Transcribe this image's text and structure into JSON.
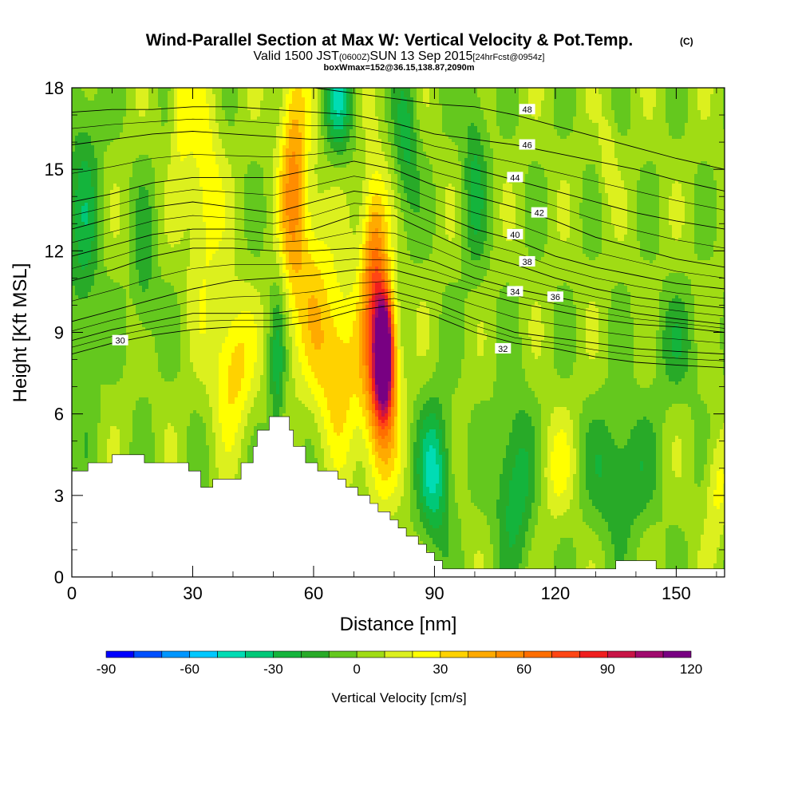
{
  "chart_data": {
    "type": "heatmap",
    "title": {
      "main": "Wind-Parallel Section at Max W: Vertical Velocity & Pot.Temp.",
      "copyright": "(C)",
      "valid_a": "Valid 1500 JST",
      "valid_zulu": "(0600Z)",
      "valid_b": "SUN 13 Sep 2015",
      "forecast": "[24hrFcst@0954z]",
      "box": "boxWmax=152@36.15,138.87,2090m"
    },
    "xlabel": "Distance [nm]",
    "ylabel": "Height [Kft MSL]",
    "xlim": [
      0,
      162
    ],
    "ylim": [
      0,
      18
    ],
    "x_ticks": [
      "0",
      "30",
      "60",
      "90",
      "120",
      "150"
    ],
    "y_ticks": [
      "0",
      "3",
      "6",
      "9",
      "12",
      "15",
      "18"
    ],
    "colorbar": {
      "label": "Vertical Velocity [cm/s]",
      "tick_labels": [
        "-90",
        "-60",
        "-30",
        "0",
        "30",
        "60",
        "90",
        "120"
      ],
      "ticks": [
        -90,
        -60,
        -30,
        0,
        30,
        60,
        90,
        120
      ],
      "min": -90,
      "max": 120,
      "levels": [
        -90,
        -80,
        -70,
        -60,
        -50,
        -40,
        -30,
        -20,
        -10,
        0,
        10,
        20,
        30,
        40,
        50,
        60,
        70,
        80,
        90,
        100,
        110,
        120
      ],
      "colors": [
        "#0000ff",
        "#0050ff",
        "#0096ff",
        "#00c8ff",
        "#00dcb4",
        "#00c878",
        "#14b43c",
        "#28aa28",
        "#64c81e",
        "#a0dc14",
        "#dcf01e",
        "#ffff00",
        "#ffd200",
        "#ffaa00",
        "#ff8c00",
        "#ff6e00",
        "#ff4614",
        "#f01e1e",
        "#c81446",
        "#a00a6e",
        "#780082"
      ]
    },
    "terrain": [
      [
        0,
        3.9
      ],
      [
        4,
        3.9
      ],
      [
        4,
        4.2
      ],
      [
        10,
        4.2
      ],
      [
        10,
        4.5
      ],
      [
        18,
        4.5
      ],
      [
        18,
        4.2
      ],
      [
        29,
        4.2
      ],
      [
        29,
        3.9
      ],
      [
        32,
        3.9
      ],
      [
        32,
        3.3
      ],
      [
        35,
        3.3
      ],
      [
        35,
        3.6
      ],
      [
        42,
        3.6
      ],
      [
        42,
        4.2
      ],
      [
        45,
        4.2
      ],
      [
        45,
        4.8
      ],
      [
        46,
        4.8
      ],
      [
        46,
        5.4
      ],
      [
        49,
        5.4
      ],
      [
        49,
        5.9
      ],
      [
        54,
        5.9
      ],
      [
        54,
        5.4
      ],
      [
        55,
        5.4
      ],
      [
        55,
        4.8
      ],
      [
        58,
        4.8
      ],
      [
        58,
        4.2
      ],
      [
        61,
        4.2
      ],
      [
        61,
        3.9
      ],
      [
        66,
        3.9
      ],
      [
        66,
        3.6
      ],
      [
        68,
        3.6
      ],
      [
        68,
        3.3
      ],
      [
        71,
        3.3
      ],
      [
        71,
        3.0
      ],
      [
        74,
        3.0
      ],
      [
        74,
        2.7
      ],
      [
        76,
        2.7
      ],
      [
        76,
        2.4
      ],
      [
        79,
        2.4
      ],
      [
        79,
        2.1
      ],
      [
        81,
        2.1
      ],
      [
        81,
        1.8
      ],
      [
        83,
        1.8
      ],
      [
        83,
        1.5
      ],
      [
        86,
        1.5
      ],
      [
        86,
        1.2
      ],
      [
        88,
        1.2
      ],
      [
        88,
        0.9
      ],
      [
        90,
        0.9
      ],
      [
        90,
        0.6
      ],
      [
        92,
        0.6
      ],
      [
        92,
        0.3
      ],
      [
        135,
        0.3
      ],
      [
        135,
        0.6
      ],
      [
        145,
        0.6
      ],
      [
        145,
        0.3
      ],
      [
        162,
        0.3
      ]
    ],
    "theta_contours": [
      {
        "label": "30",
        "points": [
          [
            0,
            8.2
          ],
          [
            10,
            8.6
          ],
          [
            20,
            8.9
          ],
          [
            30,
            9.1
          ],
          [
            40,
            9.2
          ],
          [
            50,
            9.2
          ],
          [
            60,
            9.4
          ],
          [
            70,
            9.8
          ],
          [
            80,
            10.0
          ],
          [
            90,
            9.6
          ],
          [
            100,
            9.0
          ],
          [
            110,
            8.6
          ],
          [
            120,
            8.4
          ],
          [
            130,
            8.1
          ],
          [
            140,
            7.9
          ],
          [
            150,
            7.8
          ],
          [
            162,
            7.7
          ]
        ],
        "label_at": [
          12,
          8.7
        ]
      },
      {
        "label": "32",
        "points": [
          [
            0,
            8.7
          ],
          [
            10,
            9.1
          ],
          [
            20,
            9.4
          ],
          [
            30,
            9.7
          ],
          [
            40,
            9.7
          ],
          [
            50,
            9.7
          ],
          [
            60,
            9.9
          ],
          [
            70,
            10.3
          ],
          [
            80,
            10.5
          ],
          [
            90,
            10.1
          ],
          [
            100,
            9.5
          ],
          [
            110,
            9.0
          ],
          [
            120,
            8.8
          ],
          [
            130,
            8.6
          ],
          [
            140,
            8.4
          ],
          [
            150,
            8.3
          ],
          [
            162,
            8.2
          ]
        ],
        "label_at": [
          107,
          8.4
        ]
      },
      {
        "label": "34",
        "points": [
          [
            0,
            9.4
          ],
          [
            10,
            9.8
          ],
          [
            20,
            10.2
          ],
          [
            30,
            10.6
          ],
          [
            40,
            10.9
          ],
          [
            50,
            11.0
          ],
          [
            60,
            11.1
          ],
          [
            70,
            11.3
          ],
          [
            80,
            11.3
          ],
          [
            90,
            10.9
          ],
          [
            100,
            10.5
          ],
          [
            110,
            10.1
          ],
          [
            120,
            9.8
          ],
          [
            130,
            9.5
          ],
          [
            140,
            9.3
          ],
          [
            150,
            9.2
          ],
          [
            162,
            9.0
          ]
        ],
        "label_at": [
          110,
          10.5
        ]
      },
      {
        "label": "36",
        "points": [
          [
            0,
            10.9
          ],
          [
            10,
            11.3
          ],
          [
            20,
            11.8
          ],
          [
            30,
            12.1
          ],
          [
            40,
            12.1
          ],
          [
            50,
            12.0
          ],
          [
            60,
            12.0
          ],
          [
            70,
            12.1
          ],
          [
            80,
            12.0
          ],
          [
            90,
            11.6
          ],
          [
            100,
            11.0
          ],
          [
            110,
            10.6
          ],
          [
            120,
            10.3
          ],
          [
            130,
            10.0
          ],
          [
            140,
            9.7
          ],
          [
            150,
            9.5
          ],
          [
            162,
            9.3
          ]
        ],
        "label_at": [
          120,
          10.3
        ]
      },
      {
        "label": "38",
        "points": [
          [
            0,
            11.8
          ],
          [
            10,
            12.2
          ],
          [
            20,
            12.6
          ],
          [
            30,
            12.8
          ],
          [
            40,
            12.8
          ],
          [
            50,
            12.6
          ],
          [
            60,
            12.8
          ],
          [
            70,
            13.3
          ],
          [
            80,
            13.3
          ],
          [
            90,
            12.6
          ],
          [
            100,
            11.9
          ],
          [
            110,
            11.5
          ],
          [
            120,
            11.0
          ],
          [
            130,
            10.6
          ],
          [
            140,
            10.3
          ],
          [
            150,
            10.1
          ],
          [
            162,
            9.9
          ]
        ],
        "label_at": [
          113,
          11.6
        ]
      },
      {
        "label": "40",
        "points": [
          [
            0,
            12.8
          ],
          [
            10,
            13.2
          ],
          [
            20,
            13.6
          ],
          [
            30,
            13.8
          ],
          [
            40,
            13.6
          ],
          [
            50,
            13.4
          ],
          [
            60,
            13.8
          ],
          [
            70,
            14.2
          ],
          [
            80,
            14.0
          ],
          [
            90,
            13.4
          ],
          [
            100,
            12.8
          ],
          [
            110,
            12.4
          ],
          [
            120,
            11.8
          ],
          [
            130,
            11.4
          ],
          [
            140,
            11.1
          ],
          [
            150,
            10.8
          ],
          [
            162,
            10.6
          ]
        ],
        "label_at": [
          110,
          12.6
        ]
      },
      {
        "label": "42",
        "points": [
          [
            0,
            13.8
          ],
          [
            10,
            14.1
          ],
          [
            20,
            14.5
          ],
          [
            30,
            14.7
          ],
          [
            40,
            14.7
          ],
          [
            50,
            14.7
          ],
          [
            60,
            15.0
          ],
          [
            70,
            15.3
          ],
          [
            80,
            15.0
          ],
          [
            90,
            14.4
          ],
          [
            100,
            14.0
          ],
          [
            110,
            13.6
          ],
          [
            120,
            13.1
          ],
          [
            130,
            12.5
          ],
          [
            140,
            12.1
          ],
          [
            150,
            11.7
          ],
          [
            162,
            11.4
          ]
        ],
        "label_at": [
          116,
          13.4
        ]
      },
      {
        "label": "44",
        "points": [
          [
            0,
            15.9
          ],
          [
            10,
            16.1
          ],
          [
            20,
            16.3
          ],
          [
            30,
            16.4
          ],
          [
            40,
            16.3
          ],
          [
            50,
            16.2
          ],
          [
            60,
            16.1
          ],
          [
            70,
            16.2
          ],
          [
            80,
            15.9
          ],
          [
            90,
            15.4
          ],
          [
            100,
            15.0
          ],
          [
            110,
            14.6
          ],
          [
            120,
            14.2
          ],
          [
            130,
            13.8
          ],
          [
            140,
            13.4
          ],
          [
            150,
            13.1
          ],
          [
            162,
            12.8
          ]
        ],
        "label_at": [
          110,
          14.7
        ]
      },
      {
        "label": "46",
        "points": [
          [
            0,
            17.1
          ],
          [
            10,
            17.2
          ],
          [
            20,
            17.2
          ],
          [
            30,
            17.3
          ],
          [
            40,
            17.3
          ],
          [
            50,
            17.2
          ],
          [
            60,
            17.1
          ],
          [
            70,
            17.0
          ],
          [
            80,
            16.7
          ],
          [
            90,
            16.3
          ],
          [
            100,
            16.1
          ],
          [
            110,
            15.9
          ],
          [
            120,
            15.6
          ],
          [
            130,
            15.3
          ],
          [
            140,
            15.0
          ],
          [
            150,
            14.6
          ],
          [
            162,
            14.2
          ]
        ],
        "label_at": [
          113,
          15.9
        ]
      },
      {
        "label": "48",
        "points": [
          [
            60,
            18.0
          ],
          [
            70,
            17.8
          ],
          [
            80,
            17.6
          ],
          [
            90,
            17.4
          ],
          [
            100,
            17.3
          ],
          [
            110,
            17.0
          ],
          [
            120,
            16.6
          ],
          [
            130,
            16.2
          ],
          [
            140,
            15.8
          ],
          [
            150,
            15.4
          ],
          [
            162,
            15.0
          ]
        ],
        "label_at": [
          113,
          17.2
        ]
      }
    ]
  }
}
